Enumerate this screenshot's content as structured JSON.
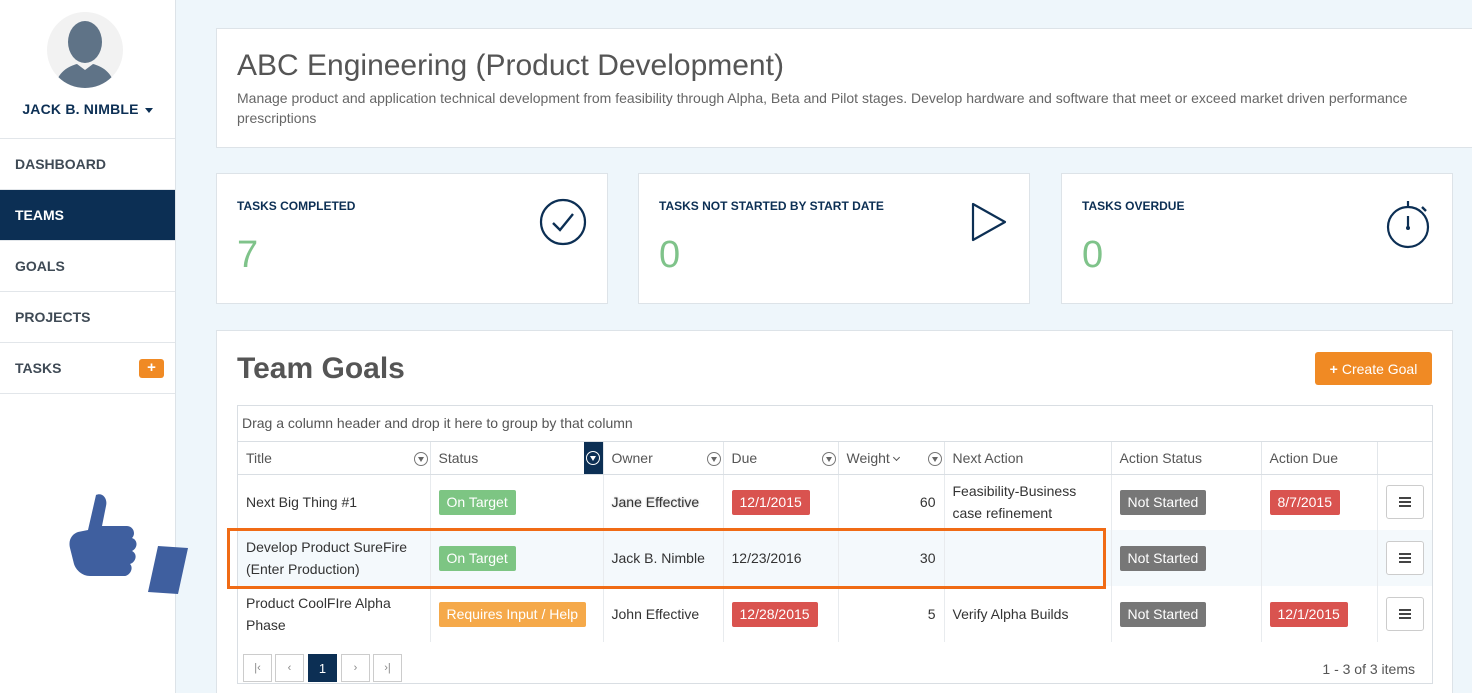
{
  "user": {
    "name": "JACK B. NIMBLE"
  },
  "nav": {
    "items": [
      {
        "label": "DASHBOARD"
      },
      {
        "label": "TEAMS"
      },
      {
        "label": "GOALS"
      },
      {
        "label": "PROJECTS"
      },
      {
        "label": "TASKS"
      }
    ],
    "tasks_add": "+"
  },
  "header": {
    "title": "ABC Engineering (Product Development)",
    "description": "Manage product and application technical development from feasibility through Alpha, Beta and Pilot stages. Develop hardware and software that meet or exceed market driven performance prescriptions"
  },
  "stats": [
    {
      "label": "TASKS COMPLETED",
      "value": "7",
      "icon": "check-circle-icon"
    },
    {
      "label": "TASKS NOT STARTED BY START DATE",
      "value": "0",
      "icon": "play-icon"
    },
    {
      "label": "TASKS OVERDUE",
      "value": "0",
      "icon": "stopwatch-icon"
    }
  ],
  "goals": {
    "title": "Team Goals",
    "create_label": "Create Goal",
    "group_hint": "Drag a column header and drop it here to group by that column",
    "columns": [
      "Title",
      "Status",
      "Owner",
      "Due",
      "Weight",
      "Next Action",
      "Action Status",
      "Action Due",
      ""
    ],
    "rows": [
      {
        "title": "Next Big Thing #1",
        "status": "On Target",
        "owner": "Jane Effective",
        "due": "12/1/2015",
        "weight": "60",
        "next_action": "Feasibility-Business case refinement",
        "action_status": "Not Started",
        "action_due": "8/7/2015"
      },
      {
        "title": "Develop Product SureFire (Enter Production)",
        "status": "On Target",
        "owner": "Jack B. Nimble",
        "due": "12/23/2016",
        "weight": "30",
        "next_action": "",
        "action_status": "Not Started",
        "action_due": ""
      },
      {
        "title": "Product CoolFIre Alpha Phase",
        "status": "Requires Input / Help",
        "owner": "John Effective",
        "due": "12/28/2015",
        "weight": "5",
        "next_action": "Verify Alpha Builds",
        "action_status": "Not Started",
        "action_due": "12/1/2015"
      }
    ],
    "pager": {
      "current": "1",
      "info": "1 - 3 of 3 items"
    }
  },
  "colors": {
    "navy": "#0c2f54",
    "accent": "#f08a24",
    "green": "#7dc583",
    "red": "#d9534f",
    "gray": "#777777",
    "highlight": "#f06b15"
  }
}
